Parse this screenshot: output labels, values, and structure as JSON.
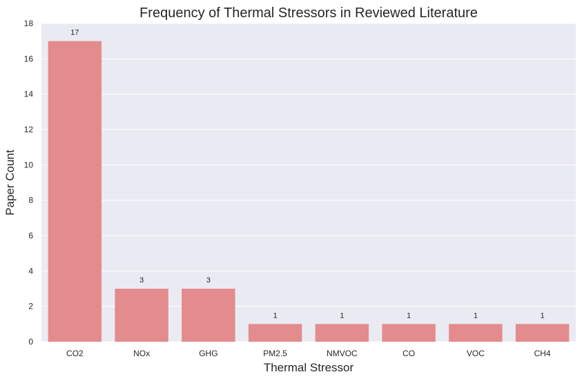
{
  "chart_data": {
    "type": "bar",
    "title": "Frequency of Thermal Stressors in Reviewed Literature",
    "xlabel": "Thermal Stressor",
    "ylabel": "Paper Count",
    "categories": [
      "CO2",
      "NOx",
      "GHG",
      "PM2.5",
      "NMVOC",
      "CO",
      "VOC",
      "CH4"
    ],
    "values": [
      17,
      3,
      3,
      1,
      1,
      1,
      1,
      1
    ],
    "data_labels": [
      "17",
      "3",
      "3",
      "1",
      "1",
      "1",
      "1",
      "1"
    ],
    "ylim": [
      0,
      18
    ],
    "yticks": [
      0,
      2,
      4,
      6,
      8,
      10,
      12,
      14,
      16,
      18
    ],
    "grid": true,
    "legend": "none",
    "colors": {
      "bar": "#e38b8d",
      "background": "#eaeaf2",
      "grid": "#ffffff"
    }
  }
}
